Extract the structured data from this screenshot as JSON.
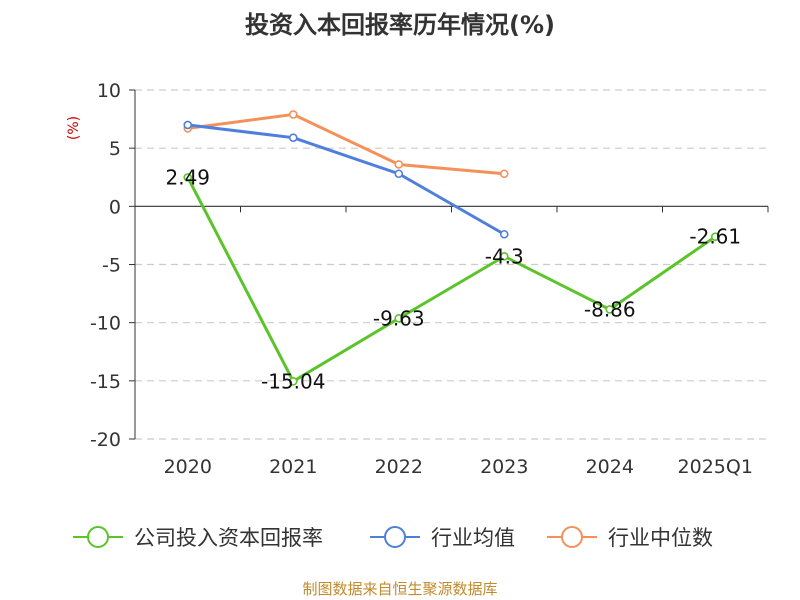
{
  "chart_data": {
    "type": "line",
    "title": "投资入本回报率历年情况(%)",
    "ylabel": "(%)",
    "xlabel": "",
    "categories": [
      "2020",
      "2021",
      "2022",
      "2023",
      "2024",
      "2025Q1"
    ],
    "ylim": [
      -20,
      10
    ],
    "yticks": [
      10,
      5,
      0,
      -5,
      -10,
      -15,
      -20
    ],
    "grid": true,
    "legend_position": "bottom",
    "series": [
      {
        "name": "公司投入资本回报率",
        "color": "#5bc42a",
        "values": [
          2.49,
          -15.04,
          -9.63,
          -4.3,
          -8.86,
          -2.61
        ],
        "labels": [
          "2.49",
          "-15.04",
          "-9.63",
          "-4.3",
          "-8.86",
          "-2.61"
        ]
      },
      {
        "name": "行业均值",
        "color": "#4f7fdd",
        "values": [
          7.0,
          5.9,
          2.8,
          -2.4,
          null,
          null
        ]
      },
      {
        "name": "行业中位数",
        "color": "#f4915a",
        "values": [
          6.7,
          7.9,
          3.6,
          2.8,
          null,
          null
        ]
      }
    ],
    "source": "制图数据来自恒生聚源数据库"
  }
}
